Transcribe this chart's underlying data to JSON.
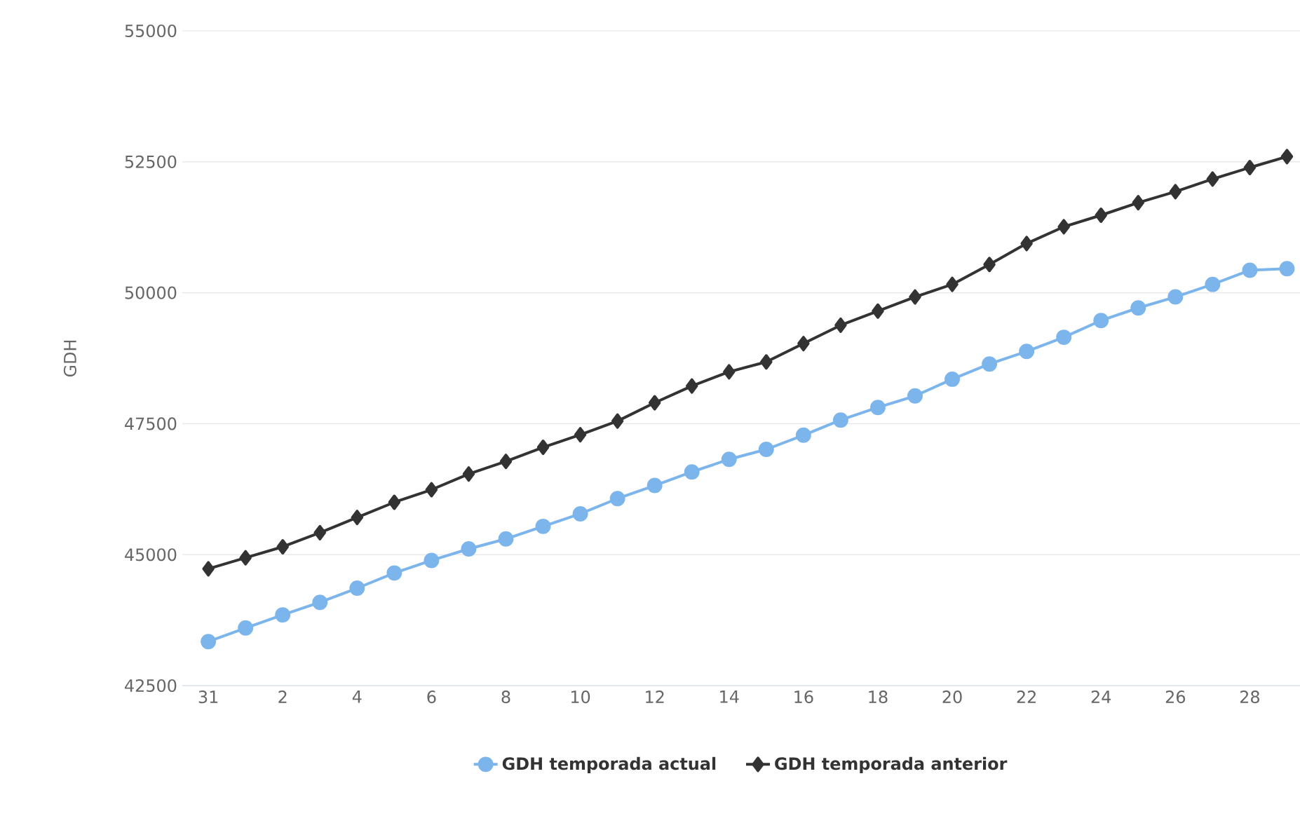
{
  "chart_data": {
    "type": "line",
    "ylabel": "GDH",
    "categories": [
      "31",
      null,
      "2",
      null,
      "4",
      null,
      "6",
      null,
      "8",
      null,
      "10",
      null,
      "12",
      null,
      "14",
      null,
      "16",
      null,
      "18",
      null,
      "20",
      null,
      "22",
      null,
      "24",
      null,
      "26",
      null,
      "28",
      null
    ],
    "series": [
      {
        "name": "GDH temporada actual",
        "color": "#7cb5ec",
        "marker": "circle",
        "values": [
          43340,
          43600,
          43850,
          44090,
          44360,
          44650,
          44890,
          45110,
          45300,
          45540,
          45780,
          46070,
          46320,
          46580,
          46820,
          47010,
          47280,
          47570,
          47810,
          48030,
          48350,
          48640,
          48880,
          49150,
          49470,
          49710,
          49920,
          50160,
          50430,
          50460
        ]
      },
      {
        "name": "GDH temporada anterior",
        "color": "#333333",
        "marker": "diamond",
        "values": [
          44730,
          44940,
          45150,
          45420,
          45710,
          46000,
          46240,
          46540,
          46780,
          47050,
          47290,
          47550,
          47900,
          48220,
          48490,
          48680,
          49030,
          49380,
          49650,
          49920,
          50160,
          50540,
          50940,
          51260,
          51480,
          51720,
          51930,
          52170,
          52390,
          52600
        ]
      }
    ],
    "ylim": [
      42500,
      55000
    ],
    "yticks": [
      42500,
      45000,
      47500,
      50000,
      52500,
      55000
    ],
    "grid": "y",
    "legend": "bottom",
    "line_style": "solid"
  }
}
